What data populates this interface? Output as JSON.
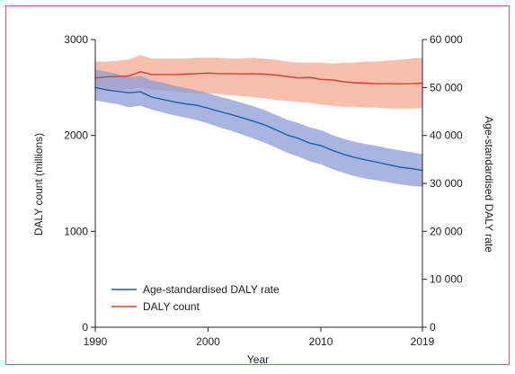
{
  "chart_data": {
    "type": "line",
    "xlabel": "Year",
    "ylabel_left": "DALY count (millions)",
    "ylabel_right": "Age-standardised DALY rate",
    "x_ticks": [
      "1990",
      "2000",
      "2010",
      "2019"
    ],
    "y_left_ticks": [
      "0",
      "1000",
      "2000",
      "3000"
    ],
    "y_right_ticks": [
      "0",
      "10 000",
      "20 000",
      "30 000",
      "40 000",
      "50 000",
      "60 000"
    ],
    "xlim": [
      1990,
      2019
    ],
    "ylim_left": [
      0,
      3000
    ],
    "ylim_right": [
      0,
      60000
    ],
    "grid": false,
    "legend_position": "bottom-left",
    "colors": {
      "rate_line": "#1f5fa8",
      "rate_band": "#8e9bd6",
      "count_line": "#e03a2f",
      "count_band": "#f7b49e",
      "frame": "#e25a6a"
    },
    "series": [
      {
        "name": "Age-standardised DALY rate",
        "axis": "right",
        "x": [
          1990,
          1991,
          1992,
          1993,
          1994,
          1995,
          1996,
          1997,
          1998,
          1999,
          2000,
          2001,
          2002,
          2003,
          2004,
          2005,
          2006,
          2007,
          2008,
          2009,
          2010,
          2011,
          2012,
          2013,
          2014,
          2015,
          2016,
          2017,
          2018,
          2019
        ],
        "values": [
          50000,
          49500,
          49200,
          48900,
          49100,
          48000,
          47500,
          47000,
          46600,
          46300,
          45700,
          45000,
          44400,
          43700,
          43000,
          42200,
          41200,
          40100,
          39400,
          38400,
          37900,
          36900,
          36100,
          35400,
          34900,
          34400,
          33900,
          33400,
          33100,
          32700
        ],
        "lower": [
          47300,
          46900,
          46500,
          45900,
          46200,
          45400,
          44800,
          44200,
          43700,
          43200,
          42500,
          41700,
          41000,
          40200,
          39400,
          38500,
          37500,
          36400,
          35600,
          34600,
          34000,
          33000,
          32200,
          31500,
          31000,
          30600,
          30200,
          29800,
          29500,
          29300
        ],
        "upper": [
          53800,
          53300,
          52800,
          52100,
          52400,
          51500,
          51000,
          50400,
          49900,
          49400,
          48800,
          48100,
          47500,
          46800,
          46100,
          45300,
          44300,
          43300,
          42600,
          41700,
          41100,
          40100,
          39300,
          38700,
          38200,
          37800,
          37300,
          36900,
          36500,
          36100
        ]
      },
      {
        "name": "DALY count",
        "axis": "left",
        "x": [
          1990,
          1991,
          1992,
          1993,
          1994,
          1995,
          1996,
          1997,
          1998,
          1999,
          2000,
          2001,
          2002,
          2003,
          2004,
          2005,
          2006,
          2007,
          2008,
          2009,
          2010,
          2011,
          2012,
          2013,
          2014,
          2015,
          2016,
          2017,
          2018,
          2019
        ],
        "values": [
          2600,
          2610,
          2615,
          2620,
          2665,
          2635,
          2635,
          2635,
          2640,
          2645,
          2650,
          2645,
          2645,
          2642,
          2645,
          2640,
          2630,
          2615,
          2600,
          2605,
          2585,
          2580,
          2560,
          2550,
          2545,
          2540,
          2540,
          2538,
          2540,
          2545
        ],
        "lower": [
          2480,
          2480,
          2480,
          2480,
          2500,
          2480,
          2470,
          2460,
          2450,
          2440,
          2440,
          2430,
          2420,
          2410,
          2400,
          2390,
          2370,
          2360,
          2350,
          2340,
          2320,
          2310,
          2300,
          2300,
          2290,
          2290,
          2280,
          2280,
          2280,
          2285
        ],
        "upper": [
          2770,
          2770,
          2780,
          2790,
          2840,
          2800,
          2800,
          2800,
          2800,
          2810,
          2810,
          2810,
          2800,
          2800,
          2810,
          2800,
          2790,
          2770,
          2760,
          2760,
          2760,
          2750,
          2760,
          2760,
          2770,
          2770,
          2780,
          2790,
          2800,
          2810
        ]
      }
    ]
  }
}
